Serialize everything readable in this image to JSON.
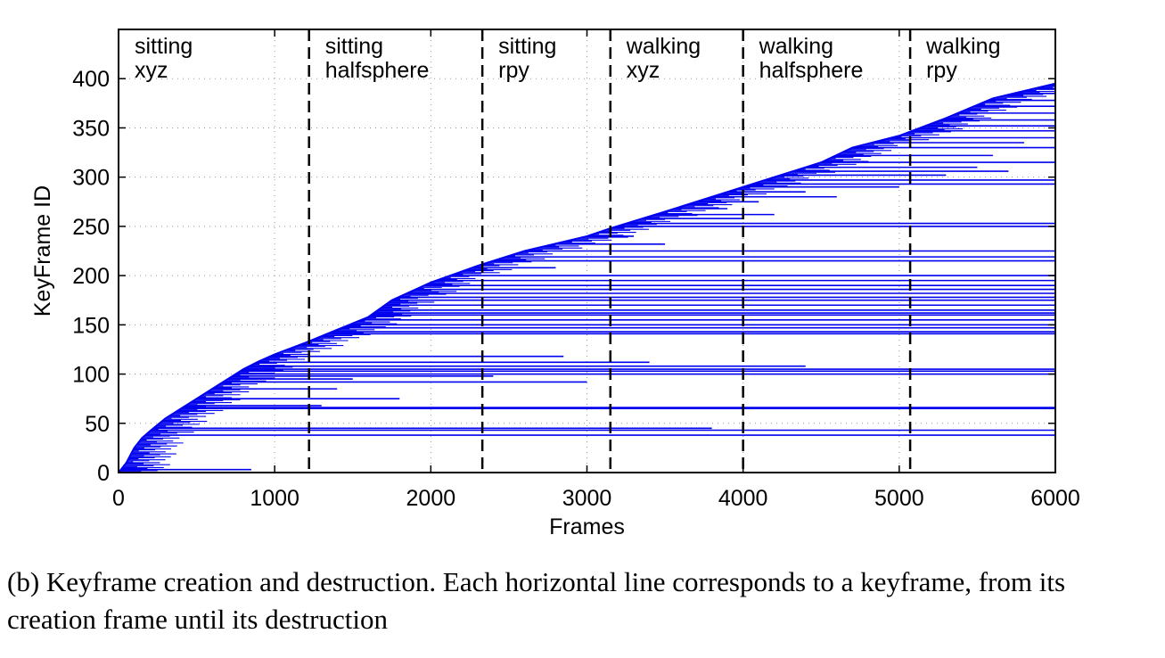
{
  "chart_data": {
    "type": "timeline-segments",
    "title": "",
    "xlabel": "Frames",
    "ylabel": "KeyFrame ID",
    "xlim": [
      0,
      6000
    ],
    "ylim": [
      0,
      450
    ],
    "xticks": [
      0,
      1000,
      2000,
      3000,
      4000,
      5000,
      6000
    ],
    "yticks": [
      0,
      50,
      100,
      150,
      200,
      250,
      300,
      350,
      400
    ],
    "grid": "dotted",
    "line_color": "#0000ee",
    "segment_boundaries": [
      1220,
      2330,
      3150,
      4000,
      5070
    ],
    "segments": [
      {
        "start": 0,
        "line1": "sitting",
        "line2": "xyz"
      },
      {
        "start": 1220,
        "line1": "sitting",
        "line2": "halfsphere"
      },
      {
        "start": 2330,
        "line1": "sitting",
        "line2": "rpy"
      },
      {
        "start": 3150,
        "line1": "walking",
        "line2": "xyz"
      },
      {
        "start": 4000,
        "line1": "walking",
        "line2": "halfsphere"
      },
      {
        "start": 5070,
        "line1": "walking",
        "line2": "rpy"
      }
    ],
    "creation_curve": [
      [
        0,
        0
      ],
      [
        50,
        10
      ],
      [
        100,
        25
      ],
      [
        150,
        35
      ],
      [
        200,
        42
      ],
      [
        300,
        55
      ],
      [
        400,
        65
      ],
      [
        500,
        75
      ],
      [
        600,
        85
      ],
      [
        700,
        95
      ],
      [
        800,
        105
      ],
      [
        900,
        113
      ],
      [
        1000,
        120
      ],
      [
        1200,
        132
      ],
      [
        1400,
        145
      ],
      [
        1600,
        158
      ],
      [
        1750,
        175
      ],
      [
        2000,
        193
      ],
      [
        2300,
        210
      ],
      [
        2600,
        225
      ],
      [
        3000,
        240
      ],
      [
        3150,
        248
      ],
      [
        3500,
        265
      ],
      [
        4000,
        290
      ],
      [
        4500,
        315
      ],
      [
        4700,
        330
      ],
      [
        5000,
        342
      ],
      [
        5300,
        360
      ],
      [
        5600,
        380
      ],
      [
        6000,
        395
      ]
    ],
    "persistent_keyframes": [
      {
        "id": 3,
        "end": 850
      },
      {
        "id": 38,
        "end": 6000
      },
      {
        "id": 43,
        "end": 6000
      },
      {
        "id": 45,
        "end": 3800
      },
      {
        "id": 65,
        "end": 6000
      },
      {
        "id": 66,
        "end": 6000
      },
      {
        "id": 68,
        "end": 1300
      },
      {
        "id": 75,
        "end": 1800
      },
      {
        "id": 85,
        "end": 1400
      },
      {
        "id": 92,
        "end": 3000
      },
      {
        "id": 95,
        "end": 1500
      },
      {
        "id": 98,
        "end": 2400
      },
      {
        "id": 100,
        "end": 6000
      },
      {
        "id": 103,
        "end": 6000
      },
      {
        "id": 105,
        "end": 6000
      },
      {
        "id": 108,
        "end": 4400
      },
      {
        "id": 112,
        "end": 3400
      },
      {
        "id": 118,
        "end": 2850
      },
      {
        "id": 141,
        "end": 6000
      },
      {
        "id": 143,
        "end": 6000
      },
      {
        "id": 147,
        "end": 6000
      },
      {
        "id": 150,
        "end": 6000
      },
      {
        "id": 155,
        "end": 6000
      },
      {
        "id": 160,
        "end": 6000
      },
      {
        "id": 162,
        "end": 6000
      },
      {
        "id": 165,
        "end": 6000
      },
      {
        "id": 170,
        "end": 6000
      },
      {
        "id": 175,
        "end": 6000
      },
      {
        "id": 178,
        "end": 6000
      },
      {
        "id": 182,
        "end": 6000
      },
      {
        "id": 186,
        "end": 6000
      },
      {
        "id": 190,
        "end": 6000
      },
      {
        "id": 195,
        "end": 6000
      },
      {
        "id": 200,
        "end": 6000
      },
      {
        "id": 208,
        "end": 2800
      },
      {
        "id": 215,
        "end": 6000
      },
      {
        "id": 219,
        "end": 6000
      },
      {
        "id": 225,
        "end": 6000
      },
      {
        "id": 232,
        "end": 3500
      },
      {
        "id": 240,
        "end": 3300
      },
      {
        "id": 250,
        "end": 6000
      },
      {
        "id": 253,
        "end": 6000
      },
      {
        "id": 258,
        "end": 4000
      },
      {
        "id": 262,
        "end": 4200
      },
      {
        "id": 268,
        "end": 3900
      },
      {
        "id": 275,
        "end": 4100
      },
      {
        "id": 280,
        "end": 4600
      },
      {
        "id": 285,
        "end": 4400
      },
      {
        "id": 290,
        "end": 5000
      },
      {
        "id": 293,
        "end": 6000
      },
      {
        "id": 297,
        "end": 6000
      },
      {
        "id": 302,
        "end": 5300
      },
      {
        "id": 306,
        "end": 5700
      },
      {
        "id": 310,
        "end": 5500
      },
      {
        "id": 315,
        "end": 6000
      },
      {
        "id": 322,
        "end": 5600
      },
      {
        "id": 330,
        "end": 6000
      },
      {
        "id": 335,
        "end": 5800
      },
      {
        "id": 340,
        "end": 6000
      },
      {
        "id": 347,
        "end": 6000
      },
      {
        "id": 352,
        "end": 6000
      },
      {
        "id": 358,
        "end": 6000
      },
      {
        "id": 365,
        "end": 6000
      },
      {
        "id": 372,
        "end": 6000
      },
      {
        "id": 378,
        "end": 6000
      },
      {
        "id": 385,
        "end": 6000
      },
      {
        "id": 390,
        "end": 6000
      }
    ]
  },
  "caption": "(b) Keyframe creation and destruction. Each horizontal line corresponds to a keyframe, from its creation frame until its destruction"
}
